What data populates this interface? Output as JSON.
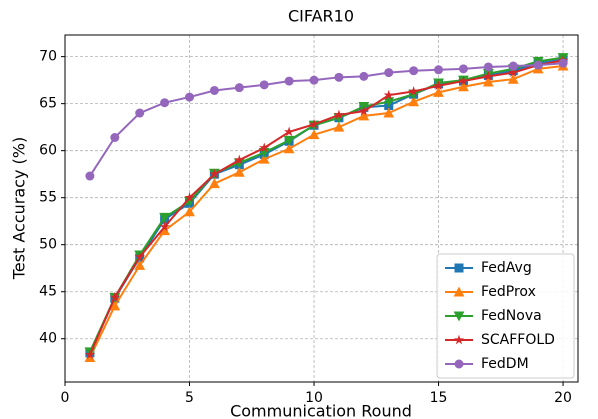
{
  "chart_data": {
    "type": "line",
    "title": "CIFAR10",
    "x_label": "Communication Round",
    "y_label": "Test Accuracy (%)",
    "x": [
      1,
      2,
      3,
      4,
      5,
      6,
      7,
      8,
      9,
      10,
      11,
      12,
      13,
      14,
      15,
      16,
      17,
      18,
      19,
      20
    ],
    "xlim": [
      0,
      20.6
    ],
    "xticks": [
      0,
      5,
      10,
      15,
      20
    ],
    "ylim": [
      35.4,
      72.3
    ],
    "yticks": [
      40,
      45,
      50,
      55,
      60,
      65,
      70
    ],
    "grid": true,
    "legend_position": "lower right",
    "series": [
      {
        "name": "FedAvg",
        "color": "#1f77b4",
        "marker": "square",
        "values": [
          38.5,
          44.3,
          48.6,
          52.7,
          54.4,
          57.5,
          58.5,
          59.6,
          61.0,
          62.7,
          63.5,
          64.6,
          64.8,
          66.0,
          67.1,
          67.4,
          68.0,
          68.5,
          69.3,
          69.7
        ]
      },
      {
        "name": "FedProx",
        "color": "#ff7f0e",
        "marker": "triangle-up",
        "values": [
          38.0,
          43.5,
          47.8,
          51.5,
          53.5,
          56.5,
          57.7,
          59.1,
          60.2,
          61.7,
          62.5,
          63.7,
          64.0,
          65.2,
          66.2,
          66.8,
          67.3,
          67.6,
          68.7,
          69.0
        ]
      },
      {
        "name": "FedNova",
        "color": "#2ca02c",
        "marker": "triangle-down",
        "values": [
          38.6,
          44.4,
          48.9,
          52.9,
          54.6,
          57.6,
          58.7,
          59.8,
          61.1,
          62.7,
          63.5,
          64.7,
          65.2,
          66.0,
          67.2,
          67.5,
          68.2,
          68.7,
          69.5,
          69.9
        ]
      },
      {
        "name": "SCAFFOLD",
        "color": "#d62728",
        "marker": "star",
        "values": [
          38.3,
          44.4,
          48.7,
          51.9,
          55.0,
          57.5,
          59.0,
          60.3,
          62.0,
          62.8,
          63.8,
          64.2,
          65.9,
          66.3,
          66.9,
          67.4,
          67.9,
          68.3,
          69.1,
          69.6
        ]
      },
      {
        "name": "FedDM",
        "color": "#9467bd",
        "marker": "circle",
        "values": [
          57.3,
          61.4,
          64.0,
          65.1,
          65.7,
          66.4,
          66.7,
          67.0,
          67.4,
          67.5,
          67.8,
          67.9,
          68.3,
          68.5,
          68.6,
          68.7,
          68.9,
          69.0,
          69.1,
          69.3
        ]
      }
    ]
  }
}
